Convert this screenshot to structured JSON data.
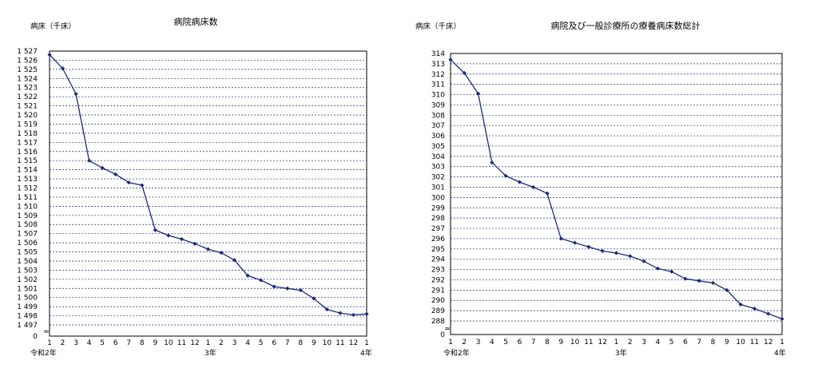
{
  "chart_data": [
    {
      "type": "line",
      "title": "病院病床数",
      "unit_label": "病床（千床）",
      "ylim": [
        1497,
        1527
      ],
      "zero_label": "0",
      "y_ticks": [
        "1 527",
        "1 526",
        "1 525",
        "1 524",
        "1 523",
        "1 522",
        "1 521",
        "1 520",
        "1 519",
        "1 518",
        "1 517",
        "1 516",
        "1 515",
        "1 514",
        "1 513",
        "1 512",
        "1 511",
        "1 510",
        "1 509",
        "1 508",
        "1 507",
        "1 506",
        "1 505",
        "1 504",
        "1 503",
        "1 502",
        "1 501",
        "1 500",
        "1 499",
        "1 498",
        "1 497"
      ],
      "x": [
        "1",
        "2",
        "3",
        "4",
        "5",
        "6",
        "7",
        "8",
        "9",
        "10",
        "11",
        "12",
        "1",
        "2",
        "3",
        "4",
        "5",
        "6",
        "7",
        "8",
        "9",
        "10",
        "11",
        "12",
        "1"
      ],
      "year_labels": [
        "令和2年",
        "3年",
        "4年"
      ],
      "values": [
        1526.6,
        1525.1,
        1522.3,
        1515.0,
        1514.2,
        1513.5,
        1512.6,
        1512.3,
        1507.4,
        1506.8,
        1506.4,
        1505.9,
        1505.3,
        1504.9,
        1504.1,
        1502.4,
        1501.9,
        1501.2,
        1501.0,
        1500.8,
        1499.9,
        1498.7,
        1498.3,
        1498.1,
        1498.2
      ],
      "grid": true
    },
    {
      "type": "line",
      "title": "病院及び一般診療所の療養病床数総計",
      "unit_label": "病床（千床）",
      "ylim": [
        288,
        314
      ],
      "zero_label": "0",
      "y_ticks": [
        "314",
        "313",
        "312",
        "311",
        "310",
        "309",
        "308",
        "307",
        "306",
        "305",
        "304",
        "303",
        "302",
        "301",
        "300",
        "299",
        "298",
        "297",
        "296",
        "295",
        "294",
        "293",
        "292",
        "291",
        "290",
        "289",
        "288"
      ],
      "x": [
        "1",
        "2",
        "3",
        "4",
        "5",
        "6",
        "7",
        "8",
        "9",
        "10",
        "11",
        "12",
        "1",
        "2",
        "3",
        "4",
        "5",
        "6",
        "7",
        "8",
        "9",
        "10",
        "11",
        "12",
        "1"
      ],
      "year_labels": [
        "令和2年",
        "3年",
        "4年"
      ],
      "values": [
        313.4,
        312.1,
        310.1,
        303.4,
        302.1,
        301.5,
        301.0,
        300.4,
        296.0,
        295.6,
        295.2,
        294.8,
        294.6,
        294.3,
        293.8,
        293.1,
        292.8,
        292.1,
        291.9,
        291.7,
        291.0,
        289.6,
        289.2,
        288.7,
        288.2
      ],
      "grid": true
    }
  ]
}
